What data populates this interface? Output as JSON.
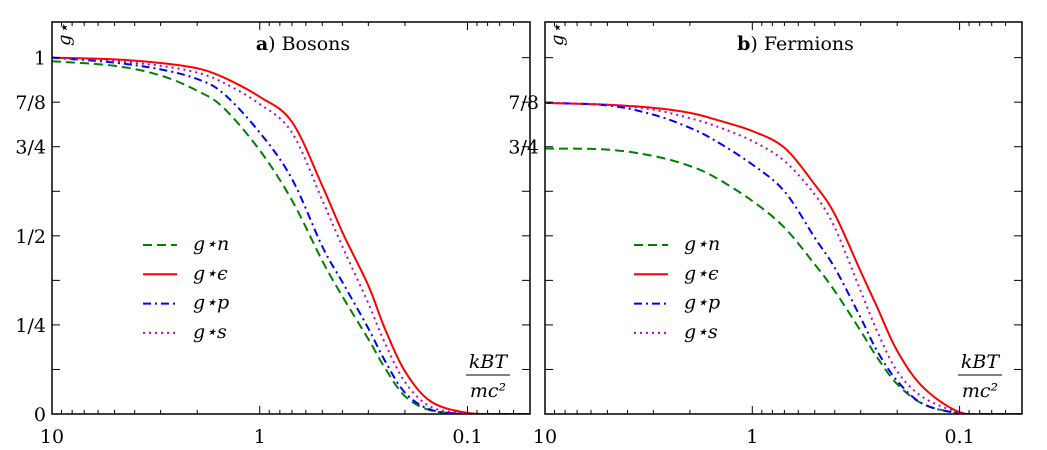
{
  "chart_data": [
    {
      "type": "line",
      "title_prefix": "a",
      "title": "Bosons",
      "ylabel": "g⋆",
      "xlabel_num": "kBT",
      "xlabel_den": "mc²",
      "xscale": "log",
      "x_reversed": true,
      "xlim": [
        10,
        0.05
      ],
      "ylim": [
        0,
        1.1
      ],
      "xticks": [
        {
          "v": 10,
          "label": "10"
        },
        {
          "v": 1,
          "label": "1"
        },
        {
          "v": 0.1,
          "label": "0.1"
        }
      ],
      "yticks": [
        {
          "v": 0,
          "label": "0"
        },
        {
          "v": 0.25,
          "label": "1/4"
        },
        {
          "v": 0.5,
          "label": "1/2"
        },
        {
          "v": 0.75,
          "label": "3/4"
        },
        {
          "v": 0.875,
          "label": "7/8"
        },
        {
          "v": 1,
          "label": "1"
        }
      ],
      "legend_placement": "center-left",
      "x": [
        10,
        5,
        3,
        2,
        1.5,
        1,
        0.7,
        0.5,
        0.4,
        0.3,
        0.25,
        0.2,
        0.15,
        0.1,
        0.07,
        0.05
      ],
      "series": [
        {
          "name": "g⋆n",
          "color": "#008000",
          "style": "dashed",
          "values": [
            0.99,
            0.977,
            0.95,
            0.907,
            0.86,
            0.74,
            0.6,
            0.43,
            0.33,
            0.21,
            0.13,
            0.05,
            0.01,
            0.0,
            0.0,
            0.0
          ]
        },
        {
          "name": "g⋆ϵ",
          "color": "#ff0000",
          "style": "solid",
          "values": [
            1.0,
            0.995,
            0.985,
            0.97,
            0.945,
            0.89,
            0.82,
            0.64,
            0.51,
            0.36,
            0.24,
            0.12,
            0.035,
            0.003,
            0.0,
            0.0
          ]
        },
        {
          "name": "g⋆p",
          "color": "#0000ff",
          "style": "dashdot",
          "values": [
            1.0,
            0.986,
            0.967,
            0.94,
            0.9,
            0.79,
            0.66,
            0.47,
            0.37,
            0.24,
            0.15,
            0.06,
            0.012,
            0.0,
            0.0,
            0.0
          ]
        },
        {
          "name": "g⋆s",
          "color": "#bf00bf",
          "style": "dotted",
          "values": [
            1.0,
            0.99,
            0.977,
            0.958,
            0.93,
            0.87,
            0.79,
            0.6,
            0.47,
            0.31,
            0.2,
            0.09,
            0.02,
            0.002,
            0.0,
            0.0
          ]
        }
      ]
    },
    {
      "type": "line",
      "title_prefix": "b",
      "title": "Fermions",
      "ylabel": "g⋆",
      "xlabel_num": "kBT",
      "xlabel_den": "mc²",
      "xscale": "log",
      "x_reversed": true,
      "xlim": [
        10,
        0.05
      ],
      "ylim": [
        0,
        1.1
      ],
      "xticks": [
        {
          "v": 10,
          "label": "10"
        },
        {
          "v": 1,
          "label": "1"
        },
        {
          "v": 0.1,
          "label": "0.1"
        }
      ],
      "yticks": [
        {
          "v": 0.75,
          "label": "3/4"
        },
        {
          "v": 0.875,
          "label": "7/8"
        }
      ],
      "legend_placement": "center-left",
      "x": [
        10,
        5,
        3,
        2,
        1.5,
        1,
        0.7,
        0.5,
        0.4,
        0.3,
        0.25,
        0.2,
        0.15,
        0.1,
        0.07,
        0.05
      ],
      "series": [
        {
          "name": "g⋆n",
          "color": "#008000",
          "style": "dashed",
          "values": [
            0.745,
            0.742,
            0.724,
            0.696,
            0.663,
            0.598,
            0.523,
            0.42,
            0.345,
            0.233,
            0.159,
            0.084,
            0.028,
            0.002,
            0.0,
            0.0
          ]
        },
        {
          "name": "g⋆ϵ",
          "color": "#ff0000",
          "style": "solid",
          "values": [
            0.873,
            0.868,
            0.859,
            0.845,
            0.826,
            0.794,
            0.747,
            0.644,
            0.56,
            0.4,
            0.3,
            0.177,
            0.075,
            0.005,
            0.0,
            0.0
          ]
        },
        {
          "name": "g⋆p",
          "color": "#0000ff",
          "style": "dashdot",
          "values": [
            0.873,
            0.866,
            0.84,
            0.803,
            0.766,
            0.7,
            0.625,
            0.495,
            0.41,
            0.27,
            0.177,
            0.093,
            0.028,
            0.002,
            0.0,
            0.0
          ]
        },
        {
          "name": "g⋆s",
          "color": "#bf00bf",
          "style": "dotted",
          "values": [
            0.873,
            0.868,
            0.854,
            0.83,
            0.808,
            0.766,
            0.71,
            0.616,
            0.523,
            0.345,
            0.233,
            0.12,
            0.047,
            0.005,
            0.0,
            0.0
          ]
        }
      ]
    }
  ]
}
